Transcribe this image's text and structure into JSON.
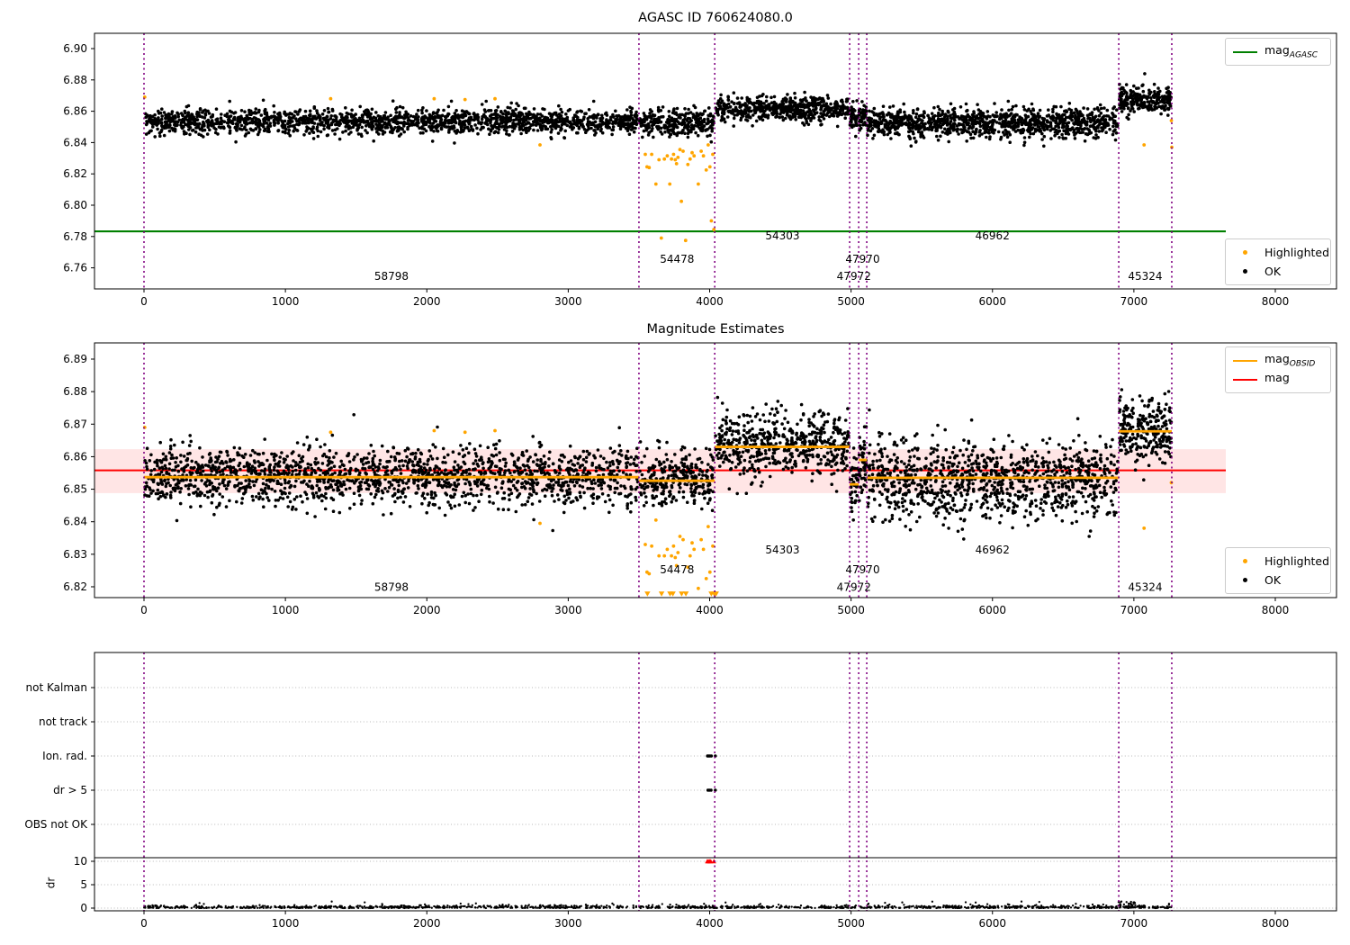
{
  "figure_title": "AGASC ID 760624080.0",
  "colors": {
    "ok": "#000000",
    "highlighted": "#ffa500",
    "mag_agasc_line": "#008000",
    "mag_line": "#ff0000",
    "mag_obsid_line": "#ffa500",
    "band_fill": "rgba(255,0,0,0.10)",
    "obsid_vline": "#800080",
    "grid": "#b8b8b8",
    "dr_flag_red": "#ff0000"
  },
  "chart_data": [
    {
      "id": "top",
      "type": "scatter",
      "title": "AGASC ID 760624080.0",
      "xlim": [
        -350,
        8434
      ],
      "ylim": [
        6.7465,
        6.9098
      ],
      "xticks": [
        0,
        1000,
        2000,
        3000,
        4000,
        5000,
        6000,
        7000,
        8000
      ],
      "yticks": [
        6.9,
        6.88,
        6.86,
        6.84,
        6.82,
        6.8,
        6.78,
        6.76
      ],
      "grid": false,
      "legend1": [
        {
          "label_main": "mag",
          "label_sub": "AGASC",
          "color": "#008000"
        }
      ],
      "legend2": [
        {
          "label": "Highlighted",
          "color": "#ffa500"
        },
        {
          "label": "OK",
          "color": "#000000"
        }
      ],
      "ref_line": {
        "name": "mag_AGASC",
        "value": 6.7833,
        "x_start": -350,
        "x_end": 7650,
        "color": "#008000"
      },
      "vlines": [
        0,
        3500,
        4036,
        4990,
        5054,
        5111,
        6893,
        7268
      ],
      "segments": [
        {
          "obsid": "58798",
          "x0": 5,
          "x1": 3495,
          "n": 1700,
          "mean": 6.8535,
          "std": 0.004
        },
        {
          "obsid": "54478",
          "x0": 3505,
          "x1": 4030,
          "n": 280,
          "mean": 6.8528,
          "std": 0.004
        },
        {
          "obsid": "54303",
          "x0": 4042,
          "x1": 4985,
          "n": 560,
          "mean": 6.8615,
          "std": 0.004
        },
        {
          "obsid": "47972",
          "x0": 4992,
          "x1": 5050,
          "n": 40,
          "mean": 6.855,
          "std": 0.0045
        },
        {
          "obsid": "47970",
          "x0": 5056,
          "x1": 5108,
          "n": 40,
          "mean": 6.857,
          "std": 0.004
        },
        {
          "obsid": "46962",
          "x0": 5115,
          "x1": 6888,
          "n": 1050,
          "mean": 6.8525,
          "std": 0.0048
        },
        {
          "obsid": "45324",
          "x0": 6896,
          "x1": 7265,
          "n": 250,
          "mean": 6.867,
          "std": 0.0042
        }
      ],
      "highlighted": [
        [
          5,
          6.869
        ],
        [
          1320,
          6.868
        ],
        [
          2052,
          6.868
        ],
        [
          2270,
          6.8675
        ],
        [
          2482,
          6.868
        ],
        [
          2800,
          6.8385
        ],
        [
          3545,
          6.8325
        ],
        [
          3557,
          6.8245
        ],
        [
          3572,
          6.824
        ],
        [
          3590,
          6.8325
        ],
        [
          3620,
          6.8135
        ],
        [
          3642,
          6.829
        ],
        [
          3658,
          6.779
        ],
        [
          3680,
          6.8295
        ],
        [
          3700,
          6.8315
        ],
        [
          3718,
          6.8135
        ],
        [
          3730,
          6.8295
        ],
        [
          3745,
          6.8325
        ],
        [
          3757,
          6.829
        ],
        [
          3766,
          6.8265
        ],
        [
          3776,
          6.8305
        ],
        [
          3790,
          6.8355
        ],
        [
          3800,
          6.8025
        ],
        [
          3812,
          6.8345
        ],
        [
          3830,
          6.7775
        ],
        [
          3846,
          6.826
        ],
        [
          3862,
          6.8295
        ],
        [
          3876,
          6.8335
        ],
        [
          3890,
          6.8315
        ],
        [
          3920,
          6.8135
        ],
        [
          3940,
          6.8345
        ],
        [
          3956,
          6.8315
        ],
        [
          3976,
          6.8225
        ],
        [
          3990,
          6.8385
        ],
        [
          4002,
          6.8245
        ],
        [
          4012,
          6.79
        ],
        [
          4022,
          6.8325
        ],
        [
          4030,
          6.7845
        ],
        [
          7072,
          6.8385
        ],
        [
          7265,
          6.854
        ],
        [
          7268,
          6.837
        ]
      ],
      "obsid_labels": [
        {
          "text": "58798",
          "x": 1750,
          "y": 6.7546
        },
        {
          "text": "54478",
          "x": 3770,
          "y": 6.7655
        },
        {
          "text": "54303",
          "x": 4515,
          "y": 6.7805
        },
        {
          "text": "47972",
          "x": 5020,
          "y": 6.7546
        },
        {
          "text": "47970",
          "x": 5082,
          "y": 6.7655
        },
        {
          "text": "46962",
          "x": 6000,
          "y": 6.7805
        },
        {
          "text": "45324",
          "x": 7080,
          "y": 6.7546
        }
      ]
    },
    {
      "id": "middle",
      "type": "scatter",
      "title": "Magnitude Estimates",
      "xlim": [
        -350,
        8434
      ],
      "ylim": [
        6.8166,
        6.8953
      ],
      "xticks": [
        0,
        1000,
        2000,
        3000,
        4000,
        5000,
        6000,
        7000,
        8000
      ],
      "yticks": [
        6.89,
        6.88,
        6.87,
        6.86,
        6.85,
        6.84,
        6.83,
        6.82
      ],
      "grid": false,
      "legend1": [
        {
          "label_main": "mag",
          "label_sub": "OBSID",
          "color": "#ffa500"
        },
        {
          "label_main": "mag",
          "label_sub": "",
          "color": "#ff0000"
        }
      ],
      "legend2": [
        {
          "label": "Highlighted",
          "color": "#ffa500"
        },
        {
          "label": "OK",
          "color": "#000000"
        }
      ],
      "mean_line": {
        "name": "mag",
        "value": 6.8558,
        "x_start": -350,
        "x_end": 7650,
        "color": "#ff0000"
      },
      "band": {
        "y0": 6.8488,
        "y1": 6.8623,
        "x_start": -350,
        "x_end": 7650
      },
      "obsid_lines": [
        {
          "obsid": "58798",
          "x0": 0,
          "x1": 3500,
          "value": 6.8537
        },
        {
          "obsid": "54478",
          "x0": 3500,
          "x1": 4036,
          "value": 6.8526
        },
        {
          "obsid": "54303",
          "x0": 4036,
          "x1": 4990,
          "value": 6.863
        },
        {
          "obsid": "47972",
          "x0": 4990,
          "x1": 5054,
          "value": 6.8515
        },
        {
          "obsid": "47970",
          "x0": 5054,
          "x1": 5111,
          "value": 6.859
        },
        {
          "obsid": "46962",
          "x0": 5111,
          "x1": 6893,
          "value": 6.8535
        },
        {
          "obsid": "45324",
          "x0": 6893,
          "x1": 7268,
          "value": 6.8678
        }
      ],
      "vlines": [
        0,
        3500,
        4036,
        4990,
        5054,
        5111,
        6893,
        7268
      ],
      "segments": [
        {
          "obsid": "58798",
          "x0": 5,
          "x1": 3495,
          "n": 1700,
          "mean": 6.854,
          "std": 0.0045
        },
        {
          "obsid": "54478",
          "x0": 3505,
          "x1": 4030,
          "n": 280,
          "mean": 6.853,
          "std": 0.0045
        },
        {
          "obsid": "54303",
          "x0": 4042,
          "x1": 4985,
          "n": 560,
          "mean": 6.8635,
          "std": 0.0048
        },
        {
          "obsid": "47972",
          "x0": 4992,
          "x1": 5050,
          "n": 40,
          "mean": 6.853,
          "std": 0.0048
        },
        {
          "obsid": "47970",
          "x0": 5056,
          "x1": 5108,
          "n": 40,
          "mean": 6.858,
          "std": 0.0045
        },
        {
          "obsid": "46962",
          "x0": 5115,
          "x1": 6888,
          "n": 1050,
          "mean": 6.8525,
          "std": 0.0062
        },
        {
          "obsid": "45324",
          "x0": 6896,
          "x1": 7265,
          "n": 250,
          "mean": 6.868,
          "std": 0.0048
        }
      ],
      "highlighted": [
        [
          5,
          6.869
        ],
        [
          1320,
          6.8675
        ],
        [
          2052,
          6.868
        ],
        [
          2270,
          6.8675
        ],
        [
          2482,
          6.868
        ],
        [
          2800,
          6.8395
        ],
        [
          3545,
          6.833
        ],
        [
          3557,
          6.8245
        ],
        [
          3572,
          6.824
        ],
        [
          3590,
          6.8325
        ],
        [
          3620,
          6.8405
        ],
        [
          3642,
          6.8295
        ],
        [
          3680,
          6.8295
        ],
        [
          3700,
          6.8315
        ],
        [
          3730,
          6.8295
        ],
        [
          3745,
          6.8325
        ],
        [
          3757,
          6.829
        ],
        [
          3766,
          6.8265
        ],
        [
          3776,
          6.8305
        ],
        [
          3790,
          6.8355
        ],
        [
          3812,
          6.8345
        ],
        [
          3846,
          6.826
        ],
        [
          3862,
          6.8295
        ],
        [
          3876,
          6.8335
        ],
        [
          3890,
          6.8315
        ],
        [
          3920,
          6.8195
        ],
        [
          3940,
          6.8345
        ],
        [
          3956,
          6.8315
        ],
        [
          3976,
          6.8225
        ],
        [
          3990,
          6.8385
        ],
        [
          4002,
          6.8245
        ],
        [
          4022,
          6.8325
        ],
        [
          7072,
          6.838
        ],
        [
          7265,
          6.852
        ]
      ],
      "clipped_triangles_x": [
        3560,
        3660,
        3720,
        3740,
        3802,
        3832,
        4012,
        4032,
        4046
      ],
      "obsid_labels": [
        {
          "text": "58798",
          "x": 1750,
          "y": 6.8198
        },
        {
          "text": "54478",
          "x": 3770,
          "y": 6.8253
        },
        {
          "text": "54303",
          "x": 4515,
          "y": 6.8314
        },
        {
          "text": "47972",
          "x": 5020,
          "y": 6.8198
        },
        {
          "text": "47970",
          "x": 5082,
          "y": 6.8253
        },
        {
          "text": "46962",
          "x": 6000,
          "y": 6.8314
        },
        {
          "text": "45324",
          "x": 7080,
          "y": 6.8198
        }
      ]
    },
    {
      "id": "bottom",
      "type": "scatter",
      "title": "",
      "xlim": [
        -350,
        8434
      ],
      "xticks": [
        0,
        1000,
        2000,
        3000,
        4000,
        5000,
        6000,
        7000,
        8000
      ],
      "categories": [
        "not Kalman",
        "not track",
        "Ion. rad.",
        "dr > 5",
        "OBS not OK"
      ],
      "dr_axis": {
        "label": "dr",
        "ticks": [
          10,
          5,
          0
        ]
      },
      "grid": true,
      "cap_line_dr": 10.77,
      "vlines": [
        0,
        3500,
        4036,
        4990,
        5054,
        5111,
        6893,
        7268
      ],
      "flag_points": {
        "Ion. rad.": [
          3985,
          3993,
          4002,
          4012,
          4040
        ],
        "dr > 5": [
          3988,
          3998,
          4010,
          4040
        ]
      },
      "red_points": {
        "x": [
          3983,
          3991,
          3999,
          4008,
          4030
        ],
        "dr": 10.0
      },
      "dr_strip": {
        "x0": 0,
        "x1": 7268,
        "n": 1400,
        "sigma": 0.28,
        "extras_n": 28,
        "extras_max_dr": 1.6,
        "cluster": {
          "x0": 6890,
          "x1": 7010,
          "n": 28,
          "max_dr": 1.4
        }
      }
    }
  ]
}
